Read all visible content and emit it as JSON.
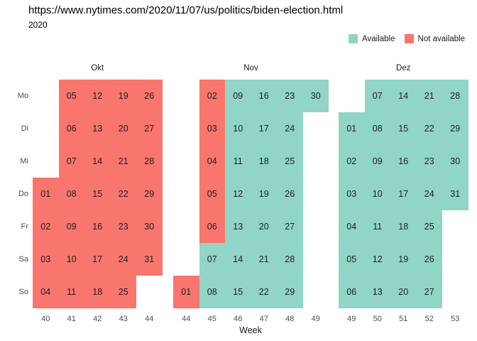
{
  "header": {
    "title": "https://www.nytimes.com/2020/11/07/us/politics/biden-election.html",
    "year": "2020"
  },
  "legend": {
    "items": [
      {
        "label": "Available",
        "status": "av",
        "color": "#90D5C5"
      },
      {
        "label": "Not available",
        "status": "na",
        "color": "#F8766D"
      }
    ]
  },
  "axis": {
    "weekday_labels": [
      "Mo",
      "Di",
      "Mi",
      "Do",
      "Fr",
      "Sa",
      "So"
    ],
    "x_title": "Week"
  },
  "chart_data": {
    "type": "heatmap",
    "title": "https://www.nytimes.com/2020/11/07/us/politics/biden-election.html",
    "subtitle": "2020",
    "xlabel": "Week",
    "legend_position": "top-right",
    "grid": false,
    "status_colors": {
      "av": "#90D5C5",
      "na": "#F8766D"
    },
    "weekday_order": [
      "Mo",
      "Di",
      "Mi",
      "Do",
      "Fr",
      "Sa",
      "So"
    ],
    "day_columns": [
      "day",
      "week",
      "weekday",
      "status"
    ],
    "months": [
      {
        "label": "Okt",
        "weeks": [
          40,
          41,
          42,
          43,
          44
        ],
        "days": [
          [
            "01",
            40,
            "Do",
            "na"
          ],
          [
            "02",
            40,
            "Fr",
            "na"
          ],
          [
            "03",
            40,
            "Sa",
            "na"
          ],
          [
            "04",
            40,
            "So",
            "na"
          ],
          [
            "05",
            41,
            "Mo",
            "na"
          ],
          [
            "06",
            41,
            "Di",
            "na"
          ],
          [
            "07",
            41,
            "Mi",
            "na"
          ],
          [
            "08",
            41,
            "Do",
            "na"
          ],
          [
            "09",
            41,
            "Fr",
            "na"
          ],
          [
            "10",
            41,
            "Sa",
            "na"
          ],
          [
            "11",
            41,
            "So",
            "na"
          ],
          [
            "12",
            42,
            "Mo",
            "na"
          ],
          [
            "13",
            42,
            "Di",
            "na"
          ],
          [
            "14",
            42,
            "Mi",
            "na"
          ],
          [
            "15",
            42,
            "Do",
            "na"
          ],
          [
            "16",
            42,
            "Fr",
            "na"
          ],
          [
            "17",
            42,
            "Sa",
            "na"
          ],
          [
            "18",
            42,
            "So",
            "na"
          ],
          [
            "19",
            43,
            "Mo",
            "na"
          ],
          [
            "20",
            43,
            "Di",
            "na"
          ],
          [
            "21",
            43,
            "Mi",
            "na"
          ],
          [
            "22",
            43,
            "Do",
            "na"
          ],
          [
            "23",
            43,
            "Fr",
            "na"
          ],
          [
            "24",
            43,
            "Sa",
            "na"
          ],
          [
            "25",
            43,
            "So",
            "na"
          ],
          [
            "26",
            44,
            "Mo",
            "na"
          ],
          [
            "27",
            44,
            "Di",
            "na"
          ],
          [
            "28",
            44,
            "Mi",
            "na"
          ],
          [
            "29",
            44,
            "Do",
            "na"
          ],
          [
            "30",
            44,
            "Fr",
            "na"
          ],
          [
            "31",
            44,
            "Sa",
            "na"
          ]
        ]
      },
      {
        "label": "Nov",
        "weeks": [
          44,
          45,
          46,
          47,
          48,
          49
        ],
        "days": [
          [
            "01",
            44,
            "So",
            "na"
          ],
          [
            "02",
            45,
            "Mo",
            "na"
          ],
          [
            "03",
            45,
            "Di",
            "na"
          ],
          [
            "04",
            45,
            "Mi",
            "na"
          ],
          [
            "05",
            45,
            "Do",
            "na"
          ],
          [
            "06",
            45,
            "Fr",
            "na"
          ],
          [
            "07",
            45,
            "Sa",
            "av"
          ],
          [
            "08",
            45,
            "So",
            "av"
          ],
          [
            "09",
            46,
            "Mo",
            "av"
          ],
          [
            "10",
            46,
            "Di",
            "av"
          ],
          [
            "11",
            46,
            "Mi",
            "av"
          ],
          [
            "12",
            46,
            "Do",
            "av"
          ],
          [
            "13",
            46,
            "Fr",
            "av"
          ],
          [
            "14",
            46,
            "Sa",
            "av"
          ],
          [
            "15",
            46,
            "So",
            "av"
          ],
          [
            "16",
            47,
            "Mo",
            "av"
          ],
          [
            "17",
            47,
            "Di",
            "av"
          ],
          [
            "18",
            47,
            "Mi",
            "av"
          ],
          [
            "19",
            47,
            "Do",
            "av"
          ],
          [
            "20",
            47,
            "Fr",
            "av"
          ],
          [
            "21",
            47,
            "Sa",
            "av"
          ],
          [
            "22",
            47,
            "So",
            "av"
          ],
          [
            "23",
            48,
            "Mo",
            "av"
          ],
          [
            "24",
            48,
            "Di",
            "av"
          ],
          [
            "25",
            48,
            "Mi",
            "av"
          ],
          [
            "26",
            48,
            "Do",
            "av"
          ],
          [
            "27",
            48,
            "Fr",
            "av"
          ],
          [
            "28",
            48,
            "Sa",
            "av"
          ],
          [
            "29",
            48,
            "So",
            "av"
          ],
          [
            "30",
            49,
            "Mo",
            "av"
          ]
        ]
      },
      {
        "label": "Dez",
        "weeks": [
          49,
          50,
          51,
          52,
          53
        ],
        "days": [
          [
            "01",
            49,
            "Di",
            "av"
          ],
          [
            "02",
            49,
            "Mi",
            "av"
          ],
          [
            "03",
            49,
            "Do",
            "av"
          ],
          [
            "04",
            49,
            "Fr",
            "av"
          ],
          [
            "05",
            49,
            "Sa",
            "av"
          ],
          [
            "06",
            49,
            "So",
            "av"
          ],
          [
            "07",
            50,
            "Mo",
            "av"
          ],
          [
            "08",
            50,
            "Di",
            "av"
          ],
          [
            "09",
            50,
            "Mi",
            "av"
          ],
          [
            "10",
            50,
            "Do",
            "av"
          ],
          [
            "11",
            50,
            "Fr",
            "av"
          ],
          [
            "12",
            50,
            "Sa",
            "av"
          ],
          [
            "13",
            50,
            "So",
            "av"
          ],
          [
            "14",
            51,
            "Mo",
            "av"
          ],
          [
            "15",
            51,
            "Di",
            "av"
          ],
          [
            "16",
            51,
            "Mi",
            "av"
          ],
          [
            "17",
            51,
            "Do",
            "av"
          ],
          [
            "18",
            51,
            "Fr",
            "av"
          ],
          [
            "19",
            51,
            "Sa",
            "av"
          ],
          [
            "20",
            51,
            "So",
            "av"
          ],
          [
            "21",
            52,
            "Mo",
            "av"
          ],
          [
            "22",
            52,
            "Di",
            "av"
          ],
          [
            "23",
            52,
            "Mi",
            "av"
          ],
          [
            "24",
            52,
            "Do",
            "av"
          ],
          [
            "25",
            52,
            "Fr",
            "av"
          ],
          [
            "26",
            52,
            "Sa",
            "av"
          ],
          [
            "27",
            52,
            "So",
            "av"
          ],
          [
            "28",
            53,
            "Mo",
            "av"
          ],
          [
            "29",
            53,
            "Di",
            "av"
          ],
          [
            "30",
            53,
            "Mi",
            "av"
          ],
          [
            "31",
            53,
            "Do",
            "av"
          ]
        ]
      }
    ]
  }
}
